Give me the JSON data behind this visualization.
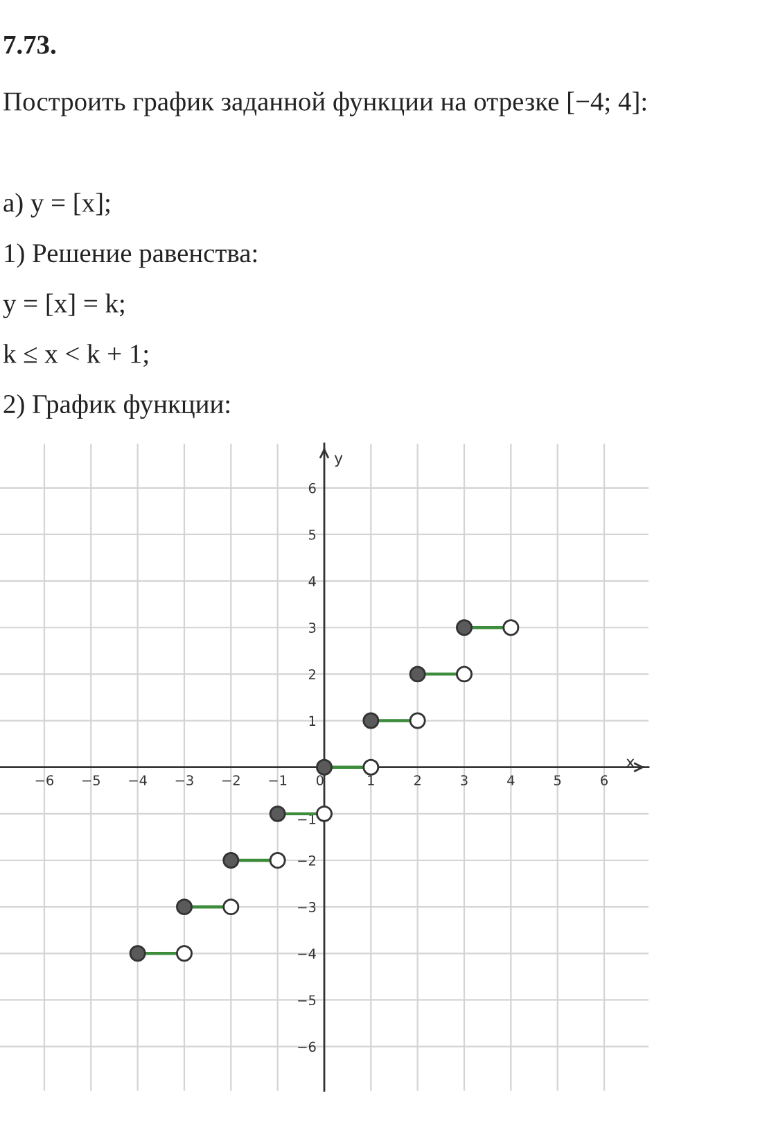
{
  "chart_data": {
    "type": "line",
    "title": "7.73.",
    "subtitle": "Построить график заданной функции на отрезке [−4; 4]:",
    "annotations": [
      "а) y = [x];",
      "1) Решение равенства:",
      "y = [x] = k;",
      "k ≤ x < k + 1;",
      "2) График функции:"
    ],
    "xlabel": "x",
    "ylabel": "y",
    "xlim": [
      -6.95,
      6.95
    ],
    "ylim": [
      -6.95,
      6.95
    ],
    "xticks": [
      -6,
      -5,
      -4,
      -3,
      -2,
      -1,
      0,
      1,
      2,
      3,
      4,
      5,
      6
    ],
    "yticks": [
      -6,
      -5,
      -4,
      -3,
      -2,
      -1,
      1,
      2,
      3,
      4,
      5,
      6
    ],
    "grid": true,
    "line_style": "solid",
    "series": [
      {
        "color": "#3c8c3c",
        "marker": "none",
        "x": [
          -4,
          -3
        ],
        "values": [
          -4,
          -4
        ]
      },
      {
        "color": "#3c8c3c",
        "marker": "none",
        "x": [
          -3,
          -2
        ],
        "values": [
          -3,
          -3
        ]
      },
      {
        "color": "#3c8c3c",
        "marker": "none",
        "x": [
          -2,
          -1
        ],
        "values": [
          -2,
          -2
        ]
      },
      {
        "color": "#3c8c3c",
        "marker": "none",
        "x": [
          -1,
          0
        ],
        "values": [
          -1,
          -1
        ]
      },
      {
        "color": "#3c8c3c",
        "marker": "none",
        "x": [
          0,
          1
        ],
        "values": [
          0,
          0
        ]
      },
      {
        "color": "#3c8c3c",
        "marker": "none",
        "x": [
          1,
          2
        ],
        "values": [
          1,
          1
        ]
      },
      {
        "color": "#3c8c3c",
        "marker": "none",
        "x": [
          2,
          3
        ],
        "values": [
          2,
          2
        ]
      },
      {
        "color": "#3c8c3c",
        "marker": "none",
        "x": [
          3,
          4
        ],
        "values": [
          3,
          3
        ]
      },
      {
        "type": "scatter",
        "marker": "circle",
        "color": "#5a5a5a",
        "x": [
          -4,
          -3,
          -2,
          -1,
          0,
          1,
          2,
          3
        ],
        "values": [
          -4,
          -3,
          -2,
          -1,
          0,
          1,
          2,
          3
        ]
      },
      {
        "type": "scatter",
        "marker": "circle",
        "color": "#ffffff",
        "x": [
          -3,
          -2,
          -1,
          0,
          1,
          2,
          3,
          4
        ],
        "values": [
          -4,
          -3,
          -2,
          -1,
          0,
          1,
          2,
          3
        ]
      }
    ]
  }
}
